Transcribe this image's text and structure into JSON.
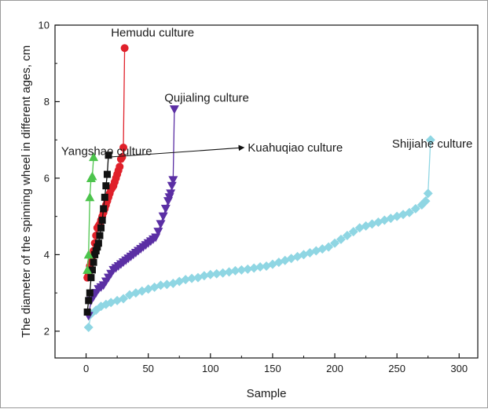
{
  "chart_data": {
    "type": "scatter",
    "title": "",
    "xlabel": "Sample",
    "ylabel": "The diameter of the spinning wheel in different ages, cm",
    "xlim": [
      -25,
      315
    ],
    "ylim": [
      1.3,
      10
    ],
    "xticks": [
      0,
      50,
      100,
      150,
      200,
      250,
      300
    ],
    "yticks": [
      2,
      4,
      6,
      8,
      10
    ],
    "grid": false,
    "legend": "none",
    "series": [
      {
        "name": "Shijiahe culture",
        "marker": "diamond",
        "color": "#8fd6e3",
        "x": [
          2,
          4,
          8,
          12,
          16,
          20,
          25,
          30,
          35,
          40,
          45,
          50,
          55,
          60,
          65,
          70,
          75,
          80,
          85,
          90,
          95,
          100,
          105,
          110,
          115,
          120,
          125,
          130,
          135,
          140,
          145,
          150,
          155,
          160,
          165,
          170,
          175,
          180,
          185,
          190,
          195,
          200,
          205,
          210,
          215,
          220,
          225,
          230,
          235,
          240,
          245,
          250,
          255,
          260,
          265,
          270,
          273,
          275,
          277
        ],
        "y": [
          2.1,
          2.45,
          2.55,
          2.65,
          2.7,
          2.75,
          2.8,
          2.85,
          2.95,
          3.0,
          3.05,
          3.1,
          3.15,
          3.2,
          3.22,
          3.25,
          3.3,
          3.35,
          3.38,
          3.4,
          3.45,
          3.48,
          3.5,
          3.52,
          3.55,
          3.58,
          3.6,
          3.62,
          3.65,
          3.68,
          3.7,
          3.75,
          3.8,
          3.85,
          3.9,
          3.95,
          4.0,
          4.05,
          4.1,
          4.15,
          4.2,
          4.3,
          4.4,
          4.5,
          4.6,
          4.7,
          4.75,
          4.8,
          4.85,
          4.9,
          4.95,
          5.0,
          5.05,
          5.1,
          5.2,
          5.3,
          5.4,
          5.6,
          7.0
        ]
      },
      {
        "name": "Qujialing culture",
        "marker": "triangle-down",
        "color": "#5b2fa4",
        "x": [
          2,
          4,
          6,
          8,
          10,
          12,
          14,
          16,
          18,
          20,
          22,
          24,
          26,
          28,
          30,
          32,
          34,
          36,
          38,
          40,
          42,
          44,
          46,
          48,
          50,
          52,
          54,
          56,
          58,
          60,
          62,
          64,
          66,
          67,
          68,
          69,
          70,
          71
        ],
        "y": [
          2.4,
          2.8,
          2.9,
          3.0,
          3.1,
          3.15,
          3.2,
          3.3,
          3.4,
          3.5,
          3.6,
          3.65,
          3.7,
          3.75,
          3.8,
          3.85,
          3.9,
          3.95,
          4.0,
          4.05,
          4.1,
          4.15,
          4.2,
          4.25,
          4.3,
          4.35,
          4.4,
          4.45,
          4.6,
          4.8,
          5.0,
          5.2,
          5.4,
          5.5,
          5.6,
          5.8,
          5.95,
          7.8
        ]
      },
      {
        "name": "Hemudu culture",
        "marker": "circle",
        "color": "#e0202a",
        "x": [
          1,
          2,
          3,
          4,
          5,
          6,
          7,
          8,
          9,
          10,
          11,
          12,
          13,
          14,
          15,
          16,
          17,
          18,
          19,
          20,
          21,
          22,
          23,
          24,
          25,
          26,
          27,
          28,
          29,
          30,
          31
        ],
        "y": [
          3.4,
          3.5,
          3.7,
          3.8,
          3.95,
          4.1,
          4.3,
          4.5,
          4.7,
          4.75,
          4.8,
          4.9,
          5.0,
          5.1,
          5.2,
          5.3,
          5.4,
          5.5,
          5.6,
          5.7,
          5.75,
          5.8,
          5.9,
          6.0,
          6.1,
          6.2,
          6.3,
          6.5,
          6.55,
          6.8,
          9.4
        ]
      },
      {
        "name": "Kuahuqiao culture",
        "marker": "square",
        "color": "#111111",
        "x": [
          1,
          2,
          3,
          4,
          5,
          6,
          7,
          8,
          9,
          10,
          11,
          12,
          13,
          14,
          15,
          16,
          17,
          18
        ],
        "y": [
          2.5,
          2.8,
          3.0,
          3.4,
          3.6,
          3.8,
          4.0,
          4.1,
          4.2,
          4.3,
          4.5,
          4.7,
          4.9,
          5.2,
          5.5,
          5.8,
          6.1,
          6.6
        ]
      },
      {
        "name": "Yangshao culture",
        "marker": "triangle-up",
        "color": "#4cc44c",
        "x": [
          1,
          2,
          3,
          4,
          5,
          6
        ],
        "y": [
          3.6,
          4.0,
          5.5,
          6.0,
          6.05,
          6.55
        ]
      }
    ],
    "annotations": [
      {
        "text": "Hemudu culture",
        "series": 2,
        "anchor_x": 20,
        "anchor_y": 9.7,
        "arrow": false
      },
      {
        "text": "Qujialing culture",
        "series": 1,
        "anchor_x": 63,
        "anchor_y": 8.0,
        "arrow": false
      },
      {
        "text": "Yangshao culture",
        "series": 4,
        "anchor_x": -20,
        "anchor_y": 6.6,
        "arrow": false
      },
      {
        "text": "Kuahuqiao culture",
        "series": 3,
        "anchor_x": 130,
        "anchor_y": 6.7,
        "arrow": true,
        "arrow_from_x": 18,
        "arrow_from_y": 6.55,
        "arrow_to_x": 127,
        "arrow_to_y": 6.8
      },
      {
        "text": "Shijiahe culture",
        "series": 0,
        "anchor_x": 246,
        "anchor_y": 6.8,
        "arrow": false
      }
    ]
  }
}
